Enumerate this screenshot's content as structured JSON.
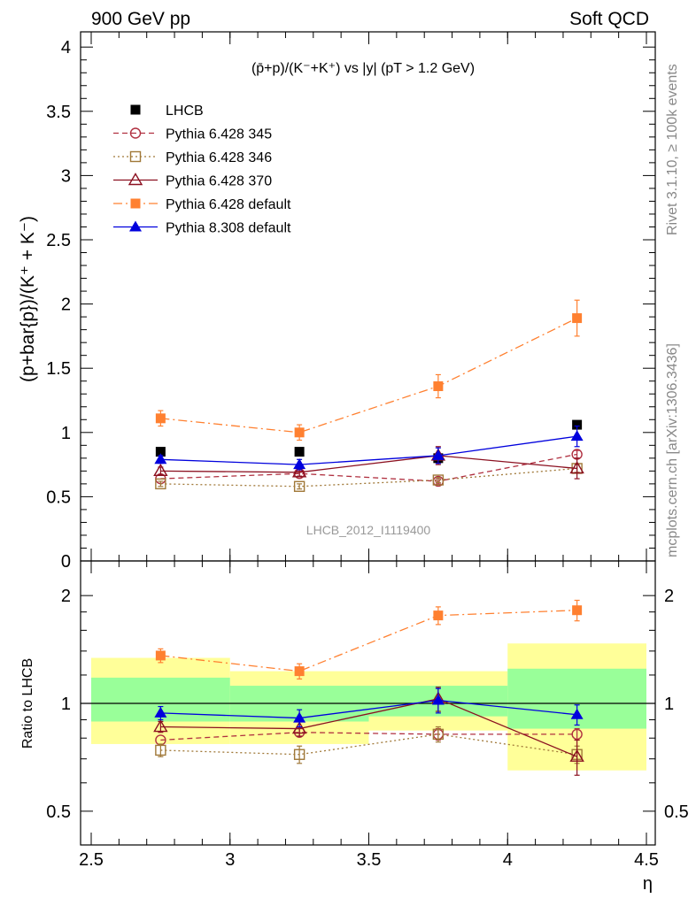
{
  "header": {
    "left": "900 GeV pp",
    "right": "Soft QCD"
  },
  "side_labels": {
    "top": "Rivet 3.1.10, ≥ 100k events",
    "bottom": "mcplots.cern.ch [arXiv:1306.3436]"
  },
  "chart_data": [
    {
      "type": "line",
      "title": "(p̄+p)/(K⁻+K⁺) vs |y| (pT > 1.2 GeV)",
      "ylabel": "(p+bar{p})/(K⁺ + K⁻)",
      "watermark": "LHCB_2012_I1119400",
      "xlim": [
        2.5,
        4.5
      ],
      "ylim": [
        0,
        4.1
      ],
      "yticks": [
        "0",
        "0.5",
        "1",
        "1.5",
        "2",
        "2.5",
        "3",
        "3.5",
        "4"
      ],
      "x": [
        2.75,
        3.25,
        3.75,
        4.25
      ],
      "legend_position": "top-left",
      "series": [
        {
          "name": "LHCB",
          "values": [
            0.85,
            0.85,
            0.8,
            1.06
          ],
          "errors": [
            0,
            0,
            0,
            0
          ],
          "color": "#000000",
          "marker": "square",
          "line": "none"
        },
        {
          "name": "Pythia 6.428 345",
          "values": [
            0.64,
            0.68,
            0.62,
            0.83
          ],
          "errors": [
            0,
            0.02,
            0.02,
            0.03
          ],
          "color": "#b03040",
          "marker": "circle-open",
          "line": "dashed"
        },
        {
          "name": "Pythia 6.428 346",
          "values": [
            0.6,
            0.58,
            0.63,
            0.72
          ],
          "errors": [
            0.02,
            0.02,
            0.02,
            0.03
          ],
          "color": "#a07838",
          "marker": "square-open",
          "line": "dotted"
        },
        {
          "name": "Pythia 6.428 370",
          "values": [
            0.7,
            0.69,
            0.82,
            0.72
          ],
          "errors": [
            0.03,
            0.03,
            0.07,
            0.08
          ],
          "color": "#8b1020",
          "marker": "triangle-open",
          "line": "solid"
        },
        {
          "name": "Pythia 6.428 default",
          "values": [
            1.11,
            1.0,
            1.36,
            1.89
          ],
          "errors": [
            0.06,
            0.06,
            0.09,
            0.14
          ],
          "color": "#ff8030",
          "marker": "square",
          "line": "dashdot"
        },
        {
          "name": "Pythia 8.308 default",
          "values": [
            0.79,
            0.75,
            0.82,
            0.97
          ],
          "errors": [
            0.03,
            0.04,
            0.06,
            0.08
          ],
          "color": "#0000dd",
          "marker": "triangle",
          "line": "solid"
        }
      ]
    },
    {
      "type": "line",
      "ylabel": "Ratio to LHCB",
      "xlabel": "η",
      "log_scale_y": true,
      "xlim": [
        2.5,
        4.5
      ],
      "ylim": [
        0.4,
        2.3
      ],
      "xticks": [
        "2.5",
        "3",
        "3.5",
        "4",
        "4.5"
      ],
      "yticks": [
        "0.5",
        "1",
        "2"
      ],
      "reference_line": 1,
      "x": [
        2.75,
        3.25,
        3.75,
        4.25
      ],
      "bands": [
        {
          "x_from": 2.5,
          "x_to": 3.0,
          "inner": [
            0.89,
            1.18
          ],
          "outer": [
            0.77,
            1.34
          ]
        },
        {
          "x_from": 3.0,
          "x_to": 3.5,
          "inner": [
            0.89,
            1.12
          ],
          "outer": [
            0.77,
            1.23
          ]
        },
        {
          "x_from": 3.5,
          "x_to": 4.0,
          "inner": [
            0.92,
            1.12
          ],
          "outer": [
            0.84,
            1.23
          ]
        },
        {
          "x_from": 4.0,
          "x_to": 4.5,
          "inner": [
            0.85,
            1.25
          ],
          "outer": [
            0.65,
            1.47
          ]
        }
      ],
      "series": [
        {
          "name": "Pythia 6.428 345",
          "values": [
            0.79,
            0.83,
            0.82,
            0.82
          ],
          "errors": [
            0,
            0.02,
            0.03,
            0.03
          ],
          "color": "#b03040",
          "marker": "circle-open",
          "line": "dashed"
        },
        {
          "name": "Pythia 6.428 346",
          "values": [
            0.74,
            0.72,
            0.82,
            0.72
          ],
          "errors": [
            0.03,
            0.04,
            0.04,
            0.04
          ],
          "color": "#a07838",
          "marker": "square-open",
          "line": "dotted"
        },
        {
          "name": "Pythia 6.428 370",
          "values": [
            0.86,
            0.85,
            1.03,
            0.71
          ],
          "errors": [
            0.03,
            0.04,
            0.08,
            0.08
          ],
          "color": "#8b1020",
          "marker": "triangle-open",
          "line": "solid"
        },
        {
          "name": "Pythia 6.428 default",
          "values": [
            1.36,
            1.23,
            1.76,
            1.82
          ],
          "errors": [
            0.06,
            0.06,
            0.1,
            0.12
          ],
          "color": "#ff8030",
          "marker": "square",
          "line": "dashdot"
        },
        {
          "name": "Pythia 8.308 default",
          "values": [
            0.94,
            0.91,
            1.02,
            0.93
          ],
          "errors": [
            0.04,
            0.05,
            0.08,
            0.06
          ],
          "color": "#0000dd",
          "marker": "triangle",
          "line": "solid"
        }
      ]
    }
  ]
}
